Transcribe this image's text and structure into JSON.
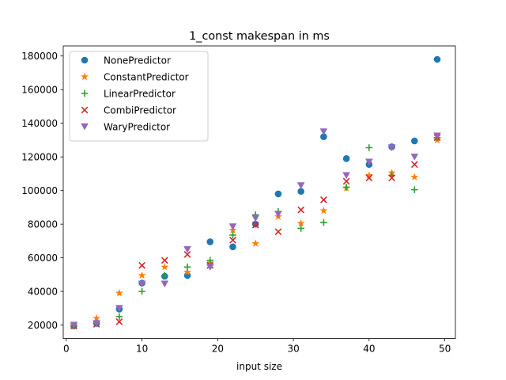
{
  "chart_data": {
    "type": "scatter",
    "title": "1_const makespan in ms",
    "xlabel": "input size",
    "ylabel": "",
    "xlim": [
      -0.4,
      51.4
    ],
    "ylim": [
      12000,
      186000
    ],
    "xticks": [
      0,
      10,
      20,
      30,
      40,
      50
    ],
    "yticks": [
      20000,
      40000,
      60000,
      80000,
      100000,
      120000,
      140000,
      160000,
      180000
    ],
    "grid": false,
    "legend_position": "top-left",
    "x": [
      1,
      4,
      7,
      10,
      13,
      16,
      19,
      22,
      25,
      28,
      31,
      34,
      37,
      40,
      43,
      46,
      49
    ],
    "series": [
      {
        "name": "NonePredictor",
        "marker": "circle",
        "color": "#1f77b4",
        "values": [
          19500,
          21000,
          29500,
          45000,
          49000,
          49500,
          69500,
          66500,
          80000,
          98000,
          99500,
          132000,
          119000,
          115500,
          126000,
          129500,
          178000
        ]
      },
      {
        "name": "ConstantPredictor",
        "marker": "star",
        "color": "#ff7f0e",
        "values": [
          19500,
          24000,
          39000,
          49500,
          54500,
          51500,
          57000,
          76500,
          68500,
          84500,
          80500,
          88000,
          101500,
          109000,
          110500,
          108000,
          130000
        ]
      },
      {
        "name": "LinearPredictor",
        "marker": "plus",
        "color": "#2ca02c",
        "values": [
          19500,
          21000,
          25000,
          40000,
          49500,
          54500,
          58500,
          73500,
          85500,
          87500,
          77500,
          81000,
          102000,
          125500,
          109000,
          100500,
          131500
        ]
      },
      {
        "name": "CombiPredictor",
        "marker": "x",
        "color": "#d62728",
        "values": [
          19500,
          20500,
          22000,
          55500,
          58500,
          62000,
          55500,
          70500,
          79500,
          75500,
          88500,
          94500,
          105500,
          107500,
          107500,
          115500,
          131500
        ]
      },
      {
        "name": "WaryPredictor",
        "marker": "triangle-down",
        "color": "#9467bd",
        "values": [
          20000,
          21000,
          30000,
          44500,
          44500,
          65000,
          54500,
          78500,
          83500,
          86000,
          103000,
          135000,
          109000,
          117000,
          125500,
          120000,
          132500
        ]
      }
    ]
  }
}
